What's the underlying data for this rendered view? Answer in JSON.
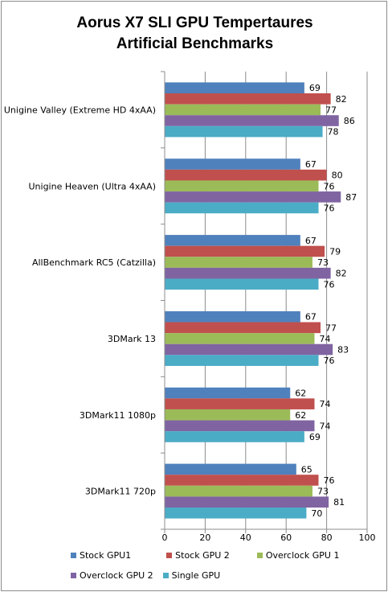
{
  "chart_data": {
    "type": "bar",
    "orientation": "horizontal",
    "title_line1": "Aorus X7 SLI GPU Tempertaures",
    "title_line2": "Artificial Benchmarks",
    "categories": [
      "Unigine Valley (Extreme HD 4xAA)",
      "Unigine Heaven (Ultra 4xAA)",
      "AllBenchmark RC5 (Catzilla)",
      "3DMark 13",
      "3DMark11 1080p",
      "3DMark11 720p"
    ],
    "series": [
      {
        "name": "Stock GPU1",
        "color": "#4f81bd",
        "values": [
          69,
          67,
          67,
          67,
          62,
          65
        ]
      },
      {
        "name": "Stock GPU 2",
        "color": "#c0504d",
        "values": [
          82,
          80,
          79,
          77,
          74,
          76
        ]
      },
      {
        "name": "Overclock GPU 1",
        "color": "#9bbb59",
        "values": [
          77,
          76,
          73,
          74,
          62,
          73
        ]
      },
      {
        "name": "Overclock GPU 2",
        "color": "#8064a2",
        "values": [
          86,
          87,
          82,
          83,
          74,
          81
        ]
      },
      {
        "name": "Single GPU",
        "color": "#4bacc6",
        "values": [
          78,
          76,
          76,
          76,
          69,
          70
        ]
      }
    ],
    "xlim": [
      0,
      100
    ],
    "xticks": [
      0,
      20,
      40,
      60,
      80,
      100
    ],
    "grid": true,
    "data_labels": true,
    "legend_position": "bottom"
  }
}
